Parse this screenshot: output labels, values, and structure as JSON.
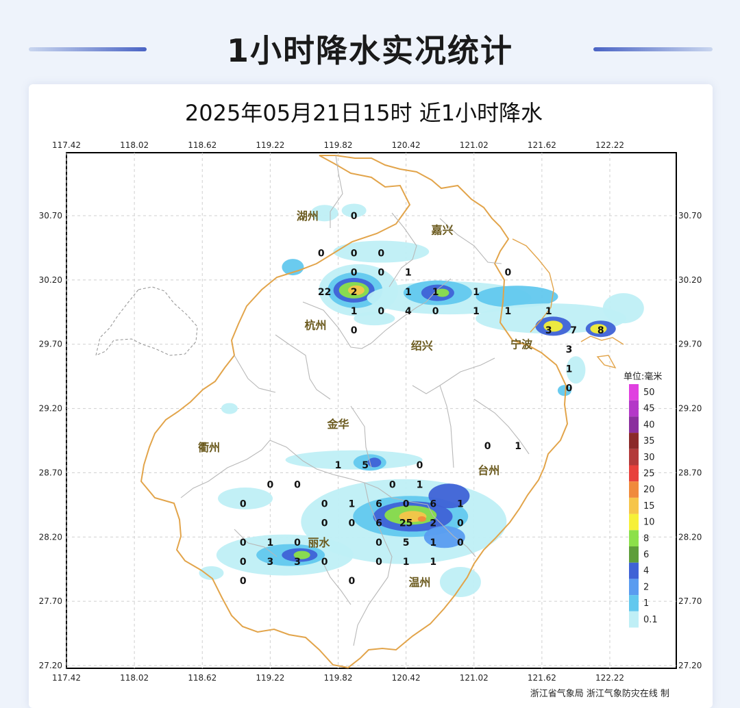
{
  "page_title": "1小时降水实况统计",
  "map_title": "2025年05月21日15时  近1小时降水",
  "lon_ticks": [
    "117.42",
    "118.02",
    "118.62",
    "119.22",
    "119.82",
    "120.42",
    "121.02",
    "121.62",
    "122.22"
  ],
  "lat_ticks": [
    "30.70",
    "30.20",
    "29.70",
    "29.20",
    "28.70",
    "28.20",
    "27.70",
    "27.20"
  ],
  "cities": [
    {
      "name": "湖州",
      "lon": 119.55,
      "lat": 30.7
    },
    {
      "name": "嘉兴",
      "lon": 120.74,
      "lat": 30.59
    },
    {
      "name": "杭州",
      "lon": 119.62,
      "lat": 29.85
    },
    {
      "name": "绍兴",
      "lon": 120.56,
      "lat": 29.69
    },
    {
      "name": "宁波",
      "lon": 121.44,
      "lat": 29.7
    },
    {
      "name": "金华",
      "lon": 119.82,
      "lat": 29.08
    },
    {
      "name": "衢州",
      "lon": 118.68,
      "lat": 28.9
    },
    {
      "name": "台州",
      "lon": 121.15,
      "lat": 28.72
    },
    {
      "name": "丽水",
      "lon": 119.65,
      "lat": 28.16
    },
    {
      "name": "温州",
      "lon": 120.54,
      "lat": 27.85
    }
  ],
  "station_values": [
    {
      "v": "0",
      "lon": 119.96,
      "lat": 30.7
    },
    {
      "v": "0",
      "lon": 119.67,
      "lat": 30.41
    },
    {
      "v": "0",
      "lon": 119.96,
      "lat": 30.41
    },
    {
      "v": "0",
      "lon": 120.2,
      "lat": 30.41
    },
    {
      "v": "0",
      "lon": 119.96,
      "lat": 30.26
    },
    {
      "v": "0",
      "lon": 120.2,
      "lat": 30.26
    },
    {
      "v": "1",
      "lon": 120.44,
      "lat": 30.26
    },
    {
      "v": "0",
      "lon": 121.32,
      "lat": 30.26
    },
    {
      "v": "22",
      "lon": 119.7,
      "lat": 30.11
    },
    {
      "v": "2",
      "lon": 119.96,
      "lat": 30.11
    },
    {
      "v": "1",
      "lon": 120.44,
      "lat": 30.11
    },
    {
      "v": "1",
      "lon": 120.68,
      "lat": 30.11
    },
    {
      "v": "1",
      "lon": 121.04,
      "lat": 30.11
    },
    {
      "v": "1",
      "lon": 119.96,
      "lat": 29.96
    },
    {
      "v": "0",
      "lon": 120.2,
      "lat": 29.96
    },
    {
      "v": "4",
      "lon": 120.44,
      "lat": 29.96
    },
    {
      "v": "0",
      "lon": 120.68,
      "lat": 29.96
    },
    {
      "v": "1",
      "lon": 121.04,
      "lat": 29.96
    },
    {
      "v": "1",
      "lon": 121.32,
      "lat": 29.96
    },
    {
      "v": "1",
      "lon": 121.68,
      "lat": 29.96
    },
    {
      "v": "3",
      "lon": 121.68,
      "lat": 29.81
    },
    {
      "v": "7",
      "lon": 121.9,
      "lat": 29.81
    },
    {
      "v": "8",
      "lon": 122.14,
      "lat": 29.81
    },
    {
      "v": "0",
      "lon": 119.96,
      "lat": 29.81
    },
    {
      "v": "3",
      "lon": 121.86,
      "lat": 29.66
    },
    {
      "v": "1",
      "lon": 121.86,
      "lat": 29.51
    },
    {
      "v": "0",
      "lon": 121.86,
      "lat": 29.36
    },
    {
      "v": "0",
      "lon": 121.14,
      "lat": 28.91
    },
    {
      "v": "1",
      "lon": 121.41,
      "lat": 28.91
    },
    {
      "v": "1",
      "lon": 119.82,
      "lat": 28.76
    },
    {
      "v": "5",
      "lon": 120.06,
      "lat": 28.76
    },
    {
      "v": "0",
      "lon": 120.54,
      "lat": 28.76
    },
    {
      "v": "0",
      "lon": 119.22,
      "lat": 28.61
    },
    {
      "v": "0",
      "lon": 119.46,
      "lat": 28.61
    },
    {
      "v": "0",
      "lon": 120.3,
      "lat": 28.61
    },
    {
      "v": "1",
      "lon": 120.54,
      "lat": 28.61
    },
    {
      "v": "0",
      "lon": 118.98,
      "lat": 28.46
    },
    {
      "v": "0",
      "lon": 119.7,
      "lat": 28.46
    },
    {
      "v": "1",
      "lon": 119.94,
      "lat": 28.46
    },
    {
      "v": "6",
      "lon": 120.18,
      "lat": 28.46
    },
    {
      "v": "0",
      "lon": 120.42,
      "lat": 28.46
    },
    {
      "v": "6",
      "lon": 120.66,
      "lat": 28.46
    },
    {
      "v": "1",
      "lon": 120.9,
      "lat": 28.46
    },
    {
      "v": "0",
      "lon": 119.7,
      "lat": 28.31
    },
    {
      "v": "0",
      "lon": 119.94,
      "lat": 28.31
    },
    {
      "v": "6",
      "lon": 120.18,
      "lat": 28.31
    },
    {
      "v": "25",
      "lon": 120.42,
      "lat": 28.31
    },
    {
      "v": "2",
      "lon": 120.66,
      "lat": 28.31
    },
    {
      "v": "0",
      "lon": 120.9,
      "lat": 28.31
    },
    {
      "v": "0",
      "lon": 118.98,
      "lat": 28.16
    },
    {
      "v": "1",
      "lon": 119.22,
      "lat": 28.16
    },
    {
      "v": "0",
      "lon": 119.46,
      "lat": 28.16
    },
    {
      "v": "0",
      "lon": 120.18,
      "lat": 28.16
    },
    {
      "v": "5",
      "lon": 120.42,
      "lat": 28.16
    },
    {
      "v": "1",
      "lon": 120.66,
      "lat": 28.16
    },
    {
      "v": "0",
      "lon": 120.9,
      "lat": 28.16
    },
    {
      "v": "0",
      "lon": 118.98,
      "lat": 28.01
    },
    {
      "v": "3",
      "lon": 119.22,
      "lat": 28.01
    },
    {
      "v": "3",
      "lon": 119.46,
      "lat": 28.01
    },
    {
      "v": "0",
      "lon": 119.7,
      "lat": 28.01
    },
    {
      "v": "0",
      "lon": 120.18,
      "lat": 28.01
    },
    {
      "v": "1",
      "lon": 120.42,
      "lat": 28.01
    },
    {
      "v": "1",
      "lon": 120.66,
      "lat": 28.01
    },
    {
      "v": "0",
      "lon": 118.98,
      "lat": 27.86
    },
    {
      "v": "0",
      "lon": 119.94,
      "lat": 27.86
    }
  ],
  "rain_cells": [
    {
      "lon": 119.7,
      "lat": 30.72,
      "rx": 20,
      "ry": 12,
      "level": 0
    },
    {
      "lon": 119.96,
      "lat": 30.74,
      "rx": 18,
      "ry": 10,
      "level": 0
    },
    {
      "lon": 120.2,
      "lat": 30.42,
      "rx": 70,
      "ry": 16,
      "level": 0
    },
    {
      "lon": 119.42,
      "lat": 30.3,
      "rx": 16,
      "ry": 12,
      "level": 1
    },
    {
      "lon": 120.0,
      "lat": 30.12,
      "rx": 58,
      "ry": 38,
      "level": 0
    },
    {
      "lon": 119.97,
      "lat": 30.12,
      "rx": 40,
      "ry": 26,
      "level": 1
    },
    {
      "lon": 119.96,
      "lat": 30.12,
      "rx": 30,
      "ry": 18,
      "level": 3
    },
    {
      "lon": 119.96,
      "lat": 30.12,
      "rx": 22,
      "ry": 12,
      "level": 5
    },
    {
      "lon": 119.98,
      "lat": 30.12,
      "rx": 12,
      "ry": 7,
      "level": 7
    },
    {
      "lon": 120.8,
      "lat": 30.06,
      "rx": 120,
      "ry": 24,
      "level": 0
    },
    {
      "lon": 120.7,
      "lat": 30.1,
      "rx": 50,
      "ry": 18,
      "level": 1
    },
    {
      "lon": 120.7,
      "lat": 30.1,
      "rx": 24,
      "ry": 12,
      "level": 3
    },
    {
      "lon": 120.74,
      "lat": 30.1,
      "rx": 10,
      "ry": 6,
      "level": 5
    },
    {
      "lon": 121.4,
      "lat": 30.07,
      "rx": 60,
      "ry": 16,
      "level": 1
    },
    {
      "lon": 121.7,
      "lat": 29.9,
      "rx": 110,
      "ry": 22,
      "level": 0
    },
    {
      "lon": 121.72,
      "lat": 29.84,
      "rx": 26,
      "ry": 14,
      "level": 3
    },
    {
      "lon": 121.72,
      "lat": 29.84,
      "rx": 14,
      "ry": 8,
      "level": 6
    },
    {
      "lon": 122.14,
      "lat": 29.82,
      "rx": 22,
      "ry": 12,
      "level": 3
    },
    {
      "lon": 122.12,
      "lat": 29.82,
      "rx": 12,
      "ry": 7,
      "level": 6
    },
    {
      "lon": 122.34,
      "lat": 29.98,
      "rx": 30,
      "ry": 22,
      "level": 0
    },
    {
      "lon": 121.92,
      "lat": 29.5,
      "rx": 14,
      "ry": 20,
      "level": 0
    },
    {
      "lon": 121.82,
      "lat": 29.34,
      "rx": 10,
      "ry": 8,
      "level": 1
    },
    {
      "lon": 120.14,
      "lat": 29.9,
      "rx": 30,
      "ry": 10,
      "level": 0
    },
    {
      "lon": 119.96,
      "lat": 28.8,
      "rx": 100,
      "ry": 14,
      "level": 0
    },
    {
      "lon": 120.1,
      "lat": 28.78,
      "rx": 24,
      "ry": 12,
      "level": 1
    },
    {
      "lon": 120.14,
      "lat": 28.78,
      "rx": 10,
      "ry": 7,
      "level": 3
    },
    {
      "lon": 120.4,
      "lat": 28.32,
      "rx": 150,
      "ry": 62,
      "level": 0
    },
    {
      "lon": 120.46,
      "lat": 28.36,
      "rx": 84,
      "ry": 30,
      "level": 1
    },
    {
      "lon": 120.48,
      "lat": 28.36,
      "rx": 58,
      "ry": 22,
      "level": 3
    },
    {
      "lon": 120.46,
      "lat": 28.37,
      "rx": 38,
      "ry": 14,
      "level": 5
    },
    {
      "lon": 120.48,
      "lat": 28.36,
      "rx": 20,
      "ry": 8,
      "level": 7
    },
    {
      "lon": 120.56,
      "lat": 28.34,
      "rx": 6,
      "ry": 4,
      "level": 8
    },
    {
      "lon": 120.8,
      "lat": 28.52,
      "rx": 30,
      "ry": 18,
      "level": 3
    },
    {
      "lon": 120.76,
      "lat": 28.2,
      "rx": 30,
      "ry": 16,
      "level": 2
    },
    {
      "lon": 119.35,
      "lat": 28.06,
      "rx": 100,
      "ry": 30,
      "level": 0
    },
    {
      "lon": 119.4,
      "lat": 28.06,
      "rx": 50,
      "ry": 16,
      "level": 1
    },
    {
      "lon": 119.48,
      "lat": 28.06,
      "rx": 26,
      "ry": 10,
      "level": 3
    },
    {
      "lon": 119.5,
      "lat": 28.06,
      "rx": 12,
      "ry": 6,
      "level": 5
    },
    {
      "lon": 119.0,
      "lat": 28.5,
      "rx": 40,
      "ry": 16,
      "level": 0
    },
    {
      "lon": 120.9,
      "lat": 27.85,
      "rx": 30,
      "ry": 22,
      "level": 0
    },
    {
      "lon": 118.86,
      "lat": 29.2,
      "rx": 12,
      "ry": 8,
      "level": 0
    },
    {
      "lon": 118.7,
      "lat": 27.92,
      "rx": 18,
      "ry": 10,
      "level": 0
    }
  ],
  "legend": {
    "title": "单位:毫米",
    "items": [
      {
        "label": "50",
        "color": "#e040e0"
      },
      {
        "label": "45",
        "color": "#b438c8"
      },
      {
        "label": "40",
        "color": "#8b2f9e"
      },
      {
        "label": "35",
        "color": "#8b2a2a"
      },
      {
        "label": "30",
        "color": "#b33a3a"
      },
      {
        "label": "25",
        "color": "#e8413c"
      },
      {
        "label": "20",
        "color": "#f08a3c"
      },
      {
        "label": "15",
        "color": "#f6c54a"
      },
      {
        "label": "10",
        "color": "#f6f038"
      },
      {
        "label": "8",
        "color": "#8ce04a"
      },
      {
        "label": "6",
        "color": "#5e9e3a"
      },
      {
        "label": "4",
        "color": "#3f62d6"
      },
      {
        "label": "2",
        "color": "#5a9cf0"
      },
      {
        "label": "1",
        "color": "#62c8ee"
      },
      {
        "label": "0.1",
        "color": "#bfeff6"
      }
    ]
  },
  "credit": "浙江省气象局   浙江气象防灾在线 制",
  "colors": {
    "province_border": "#e2a44a",
    "county_border": "#b8b8b8",
    "accent": "#4a63c4"
  }
}
